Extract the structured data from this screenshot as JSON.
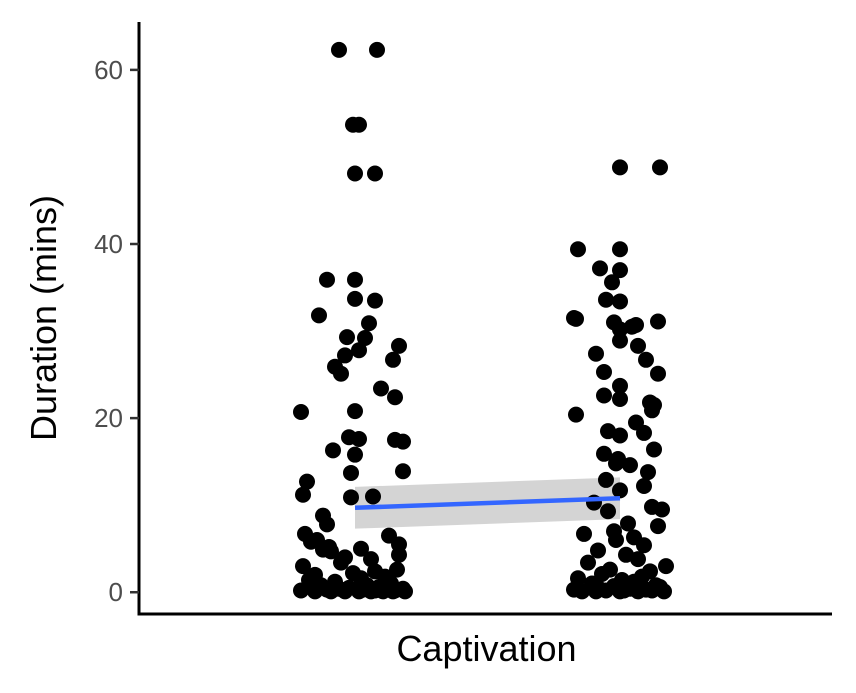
{
  "chart_data": {
    "type": "scatter",
    "title": "",
    "xlabel": "Captivation",
    "ylabel": "Duration (mins)",
    "ylim": [
      -2.5,
      65.5
    ],
    "yticks": [
      0,
      20,
      40,
      60
    ],
    "xticks": [],
    "grid": false,
    "legend": "none",
    "point_color": "#000000",
    "colors": {
      "trend_line": "#3366ff",
      "confidence_band": "#cccccc"
    },
    "note_x": "Horizontal position encodes the two jittered groups; axis has no tick labels",
    "groups": [
      {
        "x": 0,
        "y": [
          62.3,
          62.3,
          53.7,
          53.7,
          48.1,
          48.1,
          35.9,
          35.9,
          33.7,
          33.5,
          31.8,
          30.9,
          29.3,
          29.2,
          28.3,
          27.8,
          27.2,
          26.7,
          25.9,
          25.1,
          23.4,
          22.4,
          20.8,
          20.7,
          17.8,
          17.6,
          17.5,
          17.3,
          16.3,
          15.8,
          13.9,
          13.7,
          12.7,
          11.2,
          11.0,
          10.9,
          8.8,
          7.8,
          6.7,
          6.5,
          6.0,
          5.8,
          5.5,
          5.2,
          5.0,
          4.9,
          4.7,
          4.3,
          4.0,
          3.8,
          3.4,
          3.0,
          2.6,
          2.4,
          2.2,
          2.0,
          1.8,
          1.6,
          1.4,
          1.2,
          1.0,
          0.8,
          0.8,
          0.6,
          0.5,
          0.4,
          0.4,
          0.3,
          0.3,
          0.2,
          0.2,
          0.2,
          0.1,
          0.1,
          0.1,
          0.1,
          0.1,
          0.1,
          0.1,
          0.1
        ],
        "jitter": [
          -0.08,
          0.11,
          -0.01,
          0.02,
          0.0,
          0.1,
          -0.14,
          0.0,
          0.0,
          0.1,
          -0.18,
          0.07,
          -0.04,
          0.05,
          0.22,
          0.02,
          -0.05,
          0.19,
          -0.1,
          -0.07,
          0.13,
          0.2,
          0.0,
          -0.27,
          -0.03,
          0.02,
          0.2,
          0.24,
          -0.11,
          0.0,
          0.24,
          -0.02,
          -0.24,
          -0.26,
          0.09,
          -0.02,
          -0.16,
          -0.14,
          -0.25,
          0.17,
          -0.19,
          -0.22,
          0.22,
          -0.13,
          0.03,
          -0.16,
          -0.12,
          0.22,
          -0.05,
          0.08,
          -0.07,
          -0.26,
          0.21,
          0.1,
          -0.01,
          -0.2,
          0.15,
          0.03,
          -0.23,
          -0.1,
          0.18,
          0.06,
          -0.17,
          0.12,
          -0.03,
          0.24,
          -0.08,
          0.04,
          -0.14,
          0.1,
          0.2,
          -0.27,
          -0.2,
          -0.12,
          -0.05,
          0.02,
          0.08,
          0.14,
          0.19,
          0.25
        ]
      },
      {
        "x": 1,
        "y": [
          48.8,
          48.8,
          39.4,
          39.4,
          37.2,
          37.0,
          35.6,
          33.6,
          33.4,
          31.5,
          31.4,
          31.1,
          31.0,
          30.7,
          30.5,
          30.2,
          28.9,
          28.3,
          27.4,
          26.7,
          25.3,
          25.1,
          23.7,
          22.6,
          22.2,
          21.8,
          21.5,
          20.9,
          20.4,
          19.5,
          18.5,
          18.3,
          18.0,
          16.4,
          15.9,
          15.3,
          14.8,
          14.6,
          13.8,
          12.9,
          12.2,
          11.7,
          10.3,
          9.8,
          9.5,
          9.3,
          7.9,
          7.6,
          7.0,
          6.7,
          6.3,
          6.0,
          5.4,
          4.8,
          4.3,
          3.8,
          3.4,
          3.0,
          2.6,
          2.4,
          2.1,
          1.8,
          1.6,
          1.4,
          1.2,
          1.0,
          0.8,
          0.7,
          0.6,
          0.5,
          0.4,
          0.3,
          0.3,
          0.2,
          0.2,
          0.2,
          0.1,
          0.1,
          0.1,
          0.1,
          0.1
        ],
        "jitter": [
          0.0,
          0.2,
          -0.21,
          0.0,
          -0.1,
          0.0,
          -0.04,
          -0.07,
          0.0,
          -0.23,
          -0.22,
          0.19,
          -0.03,
          0.08,
          0.06,
          0.0,
          0.0,
          0.09,
          -0.12,
          0.13,
          -0.08,
          0.19,
          0.0,
          -0.08,
          0.0,
          0.15,
          0.17,
          0.16,
          -0.22,
          0.08,
          -0.06,
          0.12,
          0.0,
          0.17,
          -0.08,
          -0.01,
          -0.02,
          0.05,
          0.14,
          -0.07,
          0.12,
          0.0,
          -0.13,
          0.16,
          0.21,
          -0.06,
          0.04,
          0.19,
          -0.03,
          -0.18,
          0.07,
          -0.02,
          0.12,
          -0.11,
          0.03,
          0.09,
          -0.16,
          0.23,
          -0.05,
          0.15,
          -0.09,
          0.11,
          -0.21,
          0.01,
          0.07,
          -0.14,
          0.18,
          -0.03,
          0.2,
          -0.11,
          0.05,
          -0.23,
          0.13,
          -0.07,
          0.02,
          0.16,
          -0.19,
          -0.12,
          0.0,
          0.09,
          0.22
        ]
      }
    ],
    "trend": {
      "x": [
        0,
        1
      ],
      "y": [
        9.7,
        10.8
      ],
      "ci_lower": [
        7.3,
        8.4
      ],
      "ci_upper": [
        12.1,
        13.2
      ]
    }
  }
}
